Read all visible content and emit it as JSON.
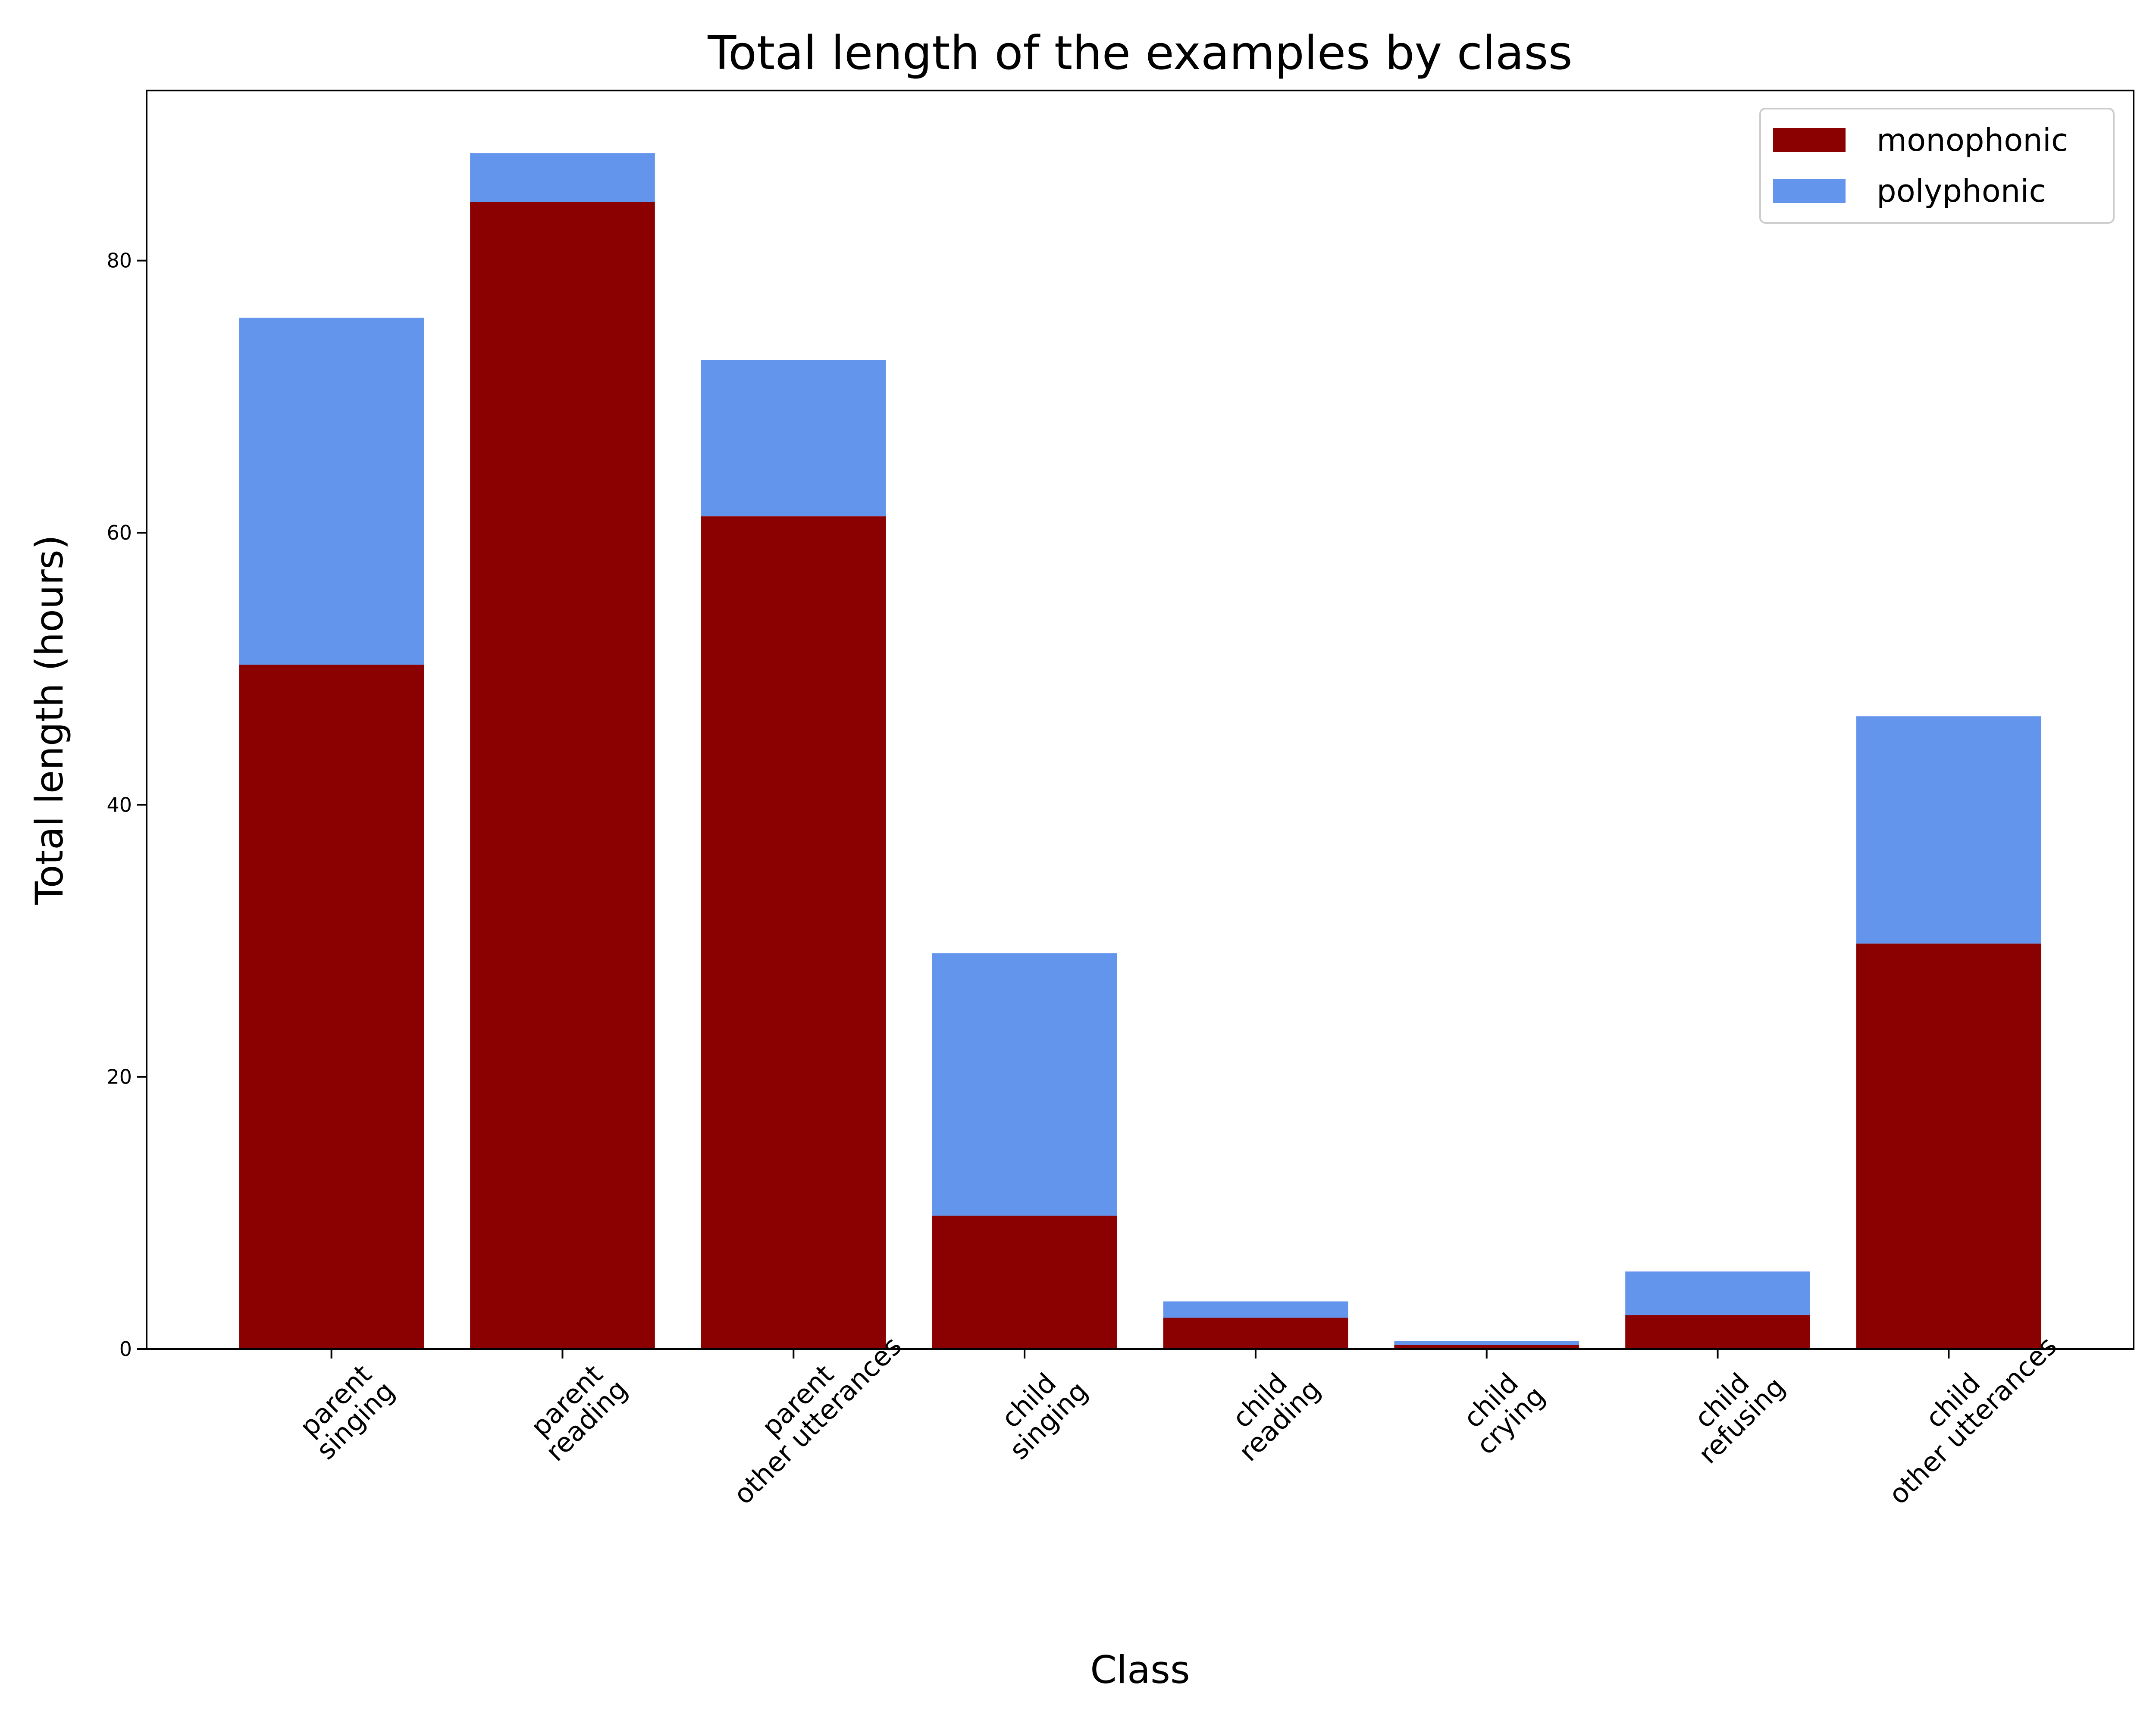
{
  "chart_data": {
    "type": "bar",
    "stacked": true,
    "title": "Total length of the examples by class",
    "xlabel": "Class",
    "ylabel": "Total length (hours)",
    "ylim": [
      0,
      92.5
    ],
    "yticks": [
      0,
      20,
      40,
      60,
      80
    ],
    "grid": false,
    "legend_position": "top-right",
    "categories": [
      [
        "parent",
        "singing"
      ],
      [
        "parent",
        "reading"
      ],
      [
        "parent",
        "other utterances"
      ],
      [
        "child",
        "singing"
      ],
      [
        "child",
        "reading"
      ],
      [
        "child",
        "crying"
      ],
      [
        "child",
        "refusing"
      ],
      [
        "child",
        "other utterances"
      ]
    ],
    "series": [
      {
        "name": "monophonic",
        "color": "#8b0000",
        "values": [
          50.3,
          84.3,
          61.2,
          9.8,
          2.3,
          0.3,
          2.5,
          29.8
        ]
      },
      {
        "name": "polyphonic",
        "color": "#6495ed",
        "values": [
          25.5,
          3.6,
          11.5,
          19.3,
          1.2,
          0.3,
          3.2,
          16.7
        ]
      }
    ]
  }
}
